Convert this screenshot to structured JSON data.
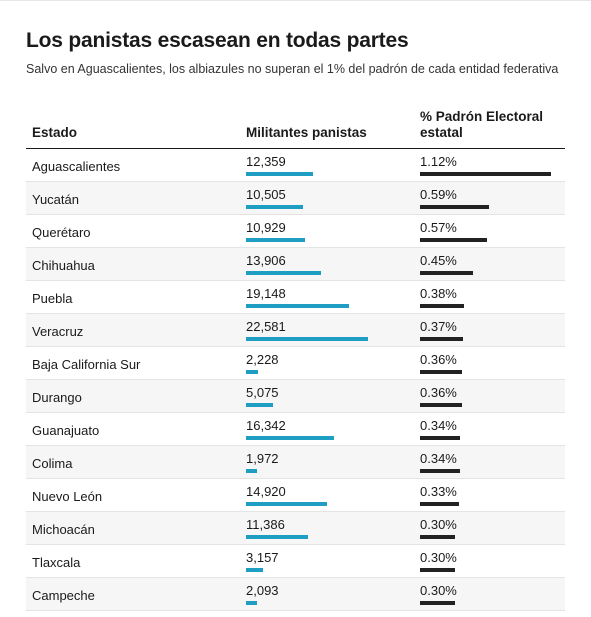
{
  "title": "Los panistas escasean en todas partes",
  "subtitle": "Salvo en Aguascalientes, los albiazules no superan el 1% del padrón de cada entidad federativa",
  "colors": {
    "militantes_bar": "#1f9ec4",
    "padron_bar": "#222222"
  },
  "chart_data": {
    "type": "table",
    "columns": [
      "Estado",
      "Militantes panistas",
      "% Padrón Electoral estatal"
    ],
    "rows": [
      {
        "estado": "Aguascalientes",
        "militantes": "12,359",
        "militantes_value": 12359,
        "padron": "1.12%",
        "padron_value": 1.12
      },
      {
        "estado": "Yucatán",
        "militantes": "10,505",
        "militantes_value": 10505,
        "padron": "0.59%",
        "padron_value": 0.59
      },
      {
        "estado": "Querétaro",
        "militantes": "10,929",
        "militantes_value": 10929,
        "padron": "0.57%",
        "padron_value": 0.57
      },
      {
        "estado": "Chihuahua",
        "militantes": "13,906",
        "militantes_value": 13906,
        "padron": "0.45%",
        "padron_value": 0.45
      },
      {
        "estado": "Puebla",
        "militantes": "19,148",
        "militantes_value": 19148,
        "padron": "0.38%",
        "padron_value": 0.38
      },
      {
        "estado": "Veracruz",
        "militantes": "22,581",
        "militantes_value": 22581,
        "padron": "0.37%",
        "padron_value": 0.37
      },
      {
        "estado": "Baja California Sur",
        "militantes": "2,228",
        "militantes_value": 2228,
        "padron": "0.36%",
        "padron_value": 0.36
      },
      {
        "estado": "Durango",
        "militantes": "5,075",
        "militantes_value": 5075,
        "padron": "0.36%",
        "padron_value": 0.36
      },
      {
        "estado": "Guanajuato",
        "militantes": "16,342",
        "militantes_value": 16342,
        "padron": "0.34%",
        "padron_value": 0.34
      },
      {
        "estado": "Colima",
        "militantes": "1,972",
        "militantes_value": 1972,
        "padron": "0.34%",
        "padron_value": 0.34
      },
      {
        "estado": "Nuevo León",
        "militantes": "14,920",
        "militantes_value": 14920,
        "padron": "0.33%",
        "padron_value": 0.33
      },
      {
        "estado": "Michoacán",
        "militantes": "11,386",
        "militantes_value": 11386,
        "padron": "0.30%",
        "padron_value": 0.3
      },
      {
        "estado": "Tlaxcala",
        "militantes": "3,157",
        "militantes_value": 3157,
        "padron": "0.30%",
        "padron_value": 0.3
      },
      {
        "estado": "Campeche",
        "militantes": "2,093",
        "militantes_value": 2093,
        "padron": "0.30%",
        "padron_value": 0.3
      }
    ]
  }
}
